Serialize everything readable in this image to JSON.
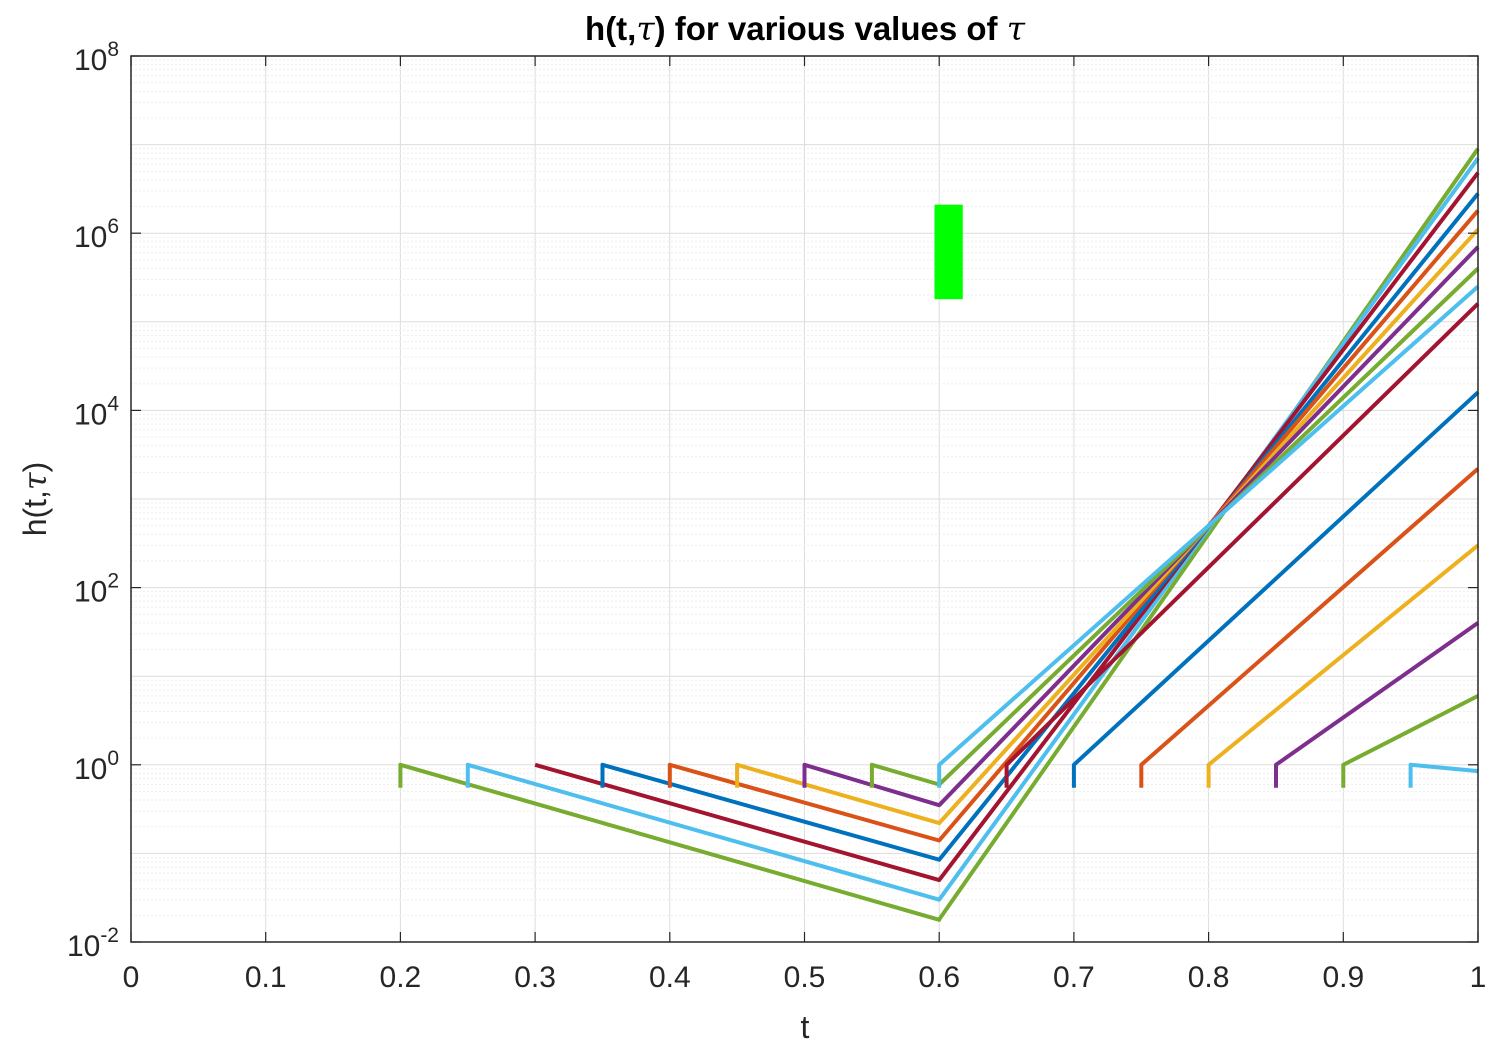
{
  "chart_data": {
    "type": "line",
    "title_main": "h(t,",
    "title_tau": "τ",
    "title_rest": ") for various values of ",
    "title_tau2": "τ",
    "xlabel": "t",
    "ylabel_main": "h(t,",
    "ylabel_tau": "τ",
    "ylabel_close": ")",
    "xlim": [
      0,
      1
    ],
    "ylim": [
      0.01,
      100000000
    ],
    "yscale": "log",
    "grid": true,
    "minor_grid": true,
    "xticks": [
      0,
      0.1,
      0.2,
      0.3,
      0.4,
      0.5,
      0.6,
      0.7,
      0.8,
      0.9,
      1
    ],
    "xtick_labels": [
      "0",
      "0.1",
      "0.2",
      "0.3",
      "0.4",
      "0.5",
      "0.6",
      "0.7",
      "0.8",
      "0.9",
      "1"
    ],
    "yticks": [
      {
        "value": 0.01,
        "base": "10",
        "exp": "-2"
      },
      {
        "value": 1,
        "base": "10",
        "exp": "0"
      },
      {
        "value": 100,
        "base": "10",
        "exp": "2"
      },
      {
        "value": 10000,
        "base": "10",
        "exp": "4"
      },
      {
        "value": 1000000,
        "base": "10",
        "exp": "6"
      },
      {
        "value": 100000000,
        "base": "10",
        "exp": "8"
      }
    ],
    "series": [
      {
        "tau": 0.2,
        "color": "#77AC30",
        "points": [
          [
            0.2,
            0.55
          ],
          [
            0.2,
            1.0
          ],
          [
            0.6,
            0.0178
          ],
          [
            0.6,
            0.018
          ],
          [
            1,
            9000000
          ]
        ]
      },
      {
        "tau": 0.25,
        "color": "#4DBEEE",
        "points": [
          [
            0.25,
            0.55
          ],
          [
            0.25,
            1.0
          ],
          [
            0.6,
            0.03
          ],
          [
            1,
            7000000
          ]
        ]
      },
      {
        "tau": 0.3,
        "color": "#A2142F",
        "points": [
          [
            0.3,
            1.0
          ],
          [
            0.6,
            0.05
          ],
          [
            1,
            4800000
          ]
        ]
      },
      {
        "tau": 0.35,
        "color": "#0072BD",
        "points": [
          [
            0.35,
            0.55
          ],
          [
            0.35,
            1.0
          ],
          [
            0.6,
            0.085
          ],
          [
            1,
            2800000
          ]
        ]
      },
      {
        "tau": 0.4,
        "color": "#D95319",
        "points": [
          [
            0.4,
            0.55
          ],
          [
            0.4,
            1.0
          ],
          [
            0.6,
            0.14
          ],
          [
            1,
            1800000
          ]
        ]
      },
      {
        "tau": 0.45,
        "color": "#EDB120",
        "points": [
          [
            0.45,
            0.55
          ],
          [
            0.45,
            1.0
          ],
          [
            0.6,
            0.22
          ],
          [
            1,
            1100000
          ]
        ]
      },
      {
        "tau": 0.5,
        "color": "#7E2F8E",
        "points": [
          [
            0.5,
            0.55
          ],
          [
            0.5,
            1.0
          ],
          [
            0.6,
            0.35
          ],
          [
            1,
            700000
          ]
        ]
      },
      {
        "tau": 0.55,
        "color": "#77AC30",
        "points": [
          [
            0.55,
            0.55
          ],
          [
            0.55,
            1.0
          ],
          [
            0.6,
            0.6
          ],
          [
            1,
            400000
          ]
        ]
      },
      {
        "tau": 0.6,
        "color": "#4DBEEE",
        "points": [
          [
            0.6,
            0.55
          ],
          [
            0.6,
            1.0
          ],
          [
            1,
            250000
          ]
        ]
      },
      {
        "tau": 0.65,
        "color": "#A2142F",
        "points": [
          [
            0.65,
            0.55
          ],
          [
            0.65,
            1.0
          ],
          [
            1,
            160000
          ]
        ]
      },
      {
        "tau": 0.7,
        "color": "#0072BD",
        "points": [
          [
            0.7,
            0.55
          ],
          [
            0.7,
            1.0
          ],
          [
            1,
            16000
          ]
        ]
      },
      {
        "tau": 0.75,
        "color": "#D95319",
        "points": [
          [
            0.75,
            0.55
          ],
          [
            0.75,
            1.0
          ],
          [
            1,
            2200
          ]
        ]
      },
      {
        "tau": 0.8,
        "color": "#EDB120",
        "points": [
          [
            0.8,
            0.55
          ],
          [
            0.8,
            1.0
          ],
          [
            1,
            300
          ]
        ]
      },
      {
        "tau": 0.85,
        "color": "#7E2F8E",
        "points": [
          [
            0.85,
            0.55
          ],
          [
            0.85,
            1.0
          ],
          [
            1,
            40
          ]
        ]
      },
      {
        "tau": 0.9,
        "color": "#77AC30",
        "points": [
          [
            0.9,
            0.55
          ],
          [
            0.9,
            1.0
          ],
          [
            1,
            6
          ]
        ]
      },
      {
        "tau": 0.95,
        "color": "#4DBEEE",
        "points": [
          [
            0.95,
            0.55
          ],
          [
            0.95,
            1.0
          ],
          [
            1,
            0.85
          ]
        ]
      }
    ],
    "overlay_marker": {
      "color": "#00FF00",
      "x": [
        0.5965,
        0.6175
      ],
      "y": [
        180000,
        2100000
      ]
    }
  }
}
